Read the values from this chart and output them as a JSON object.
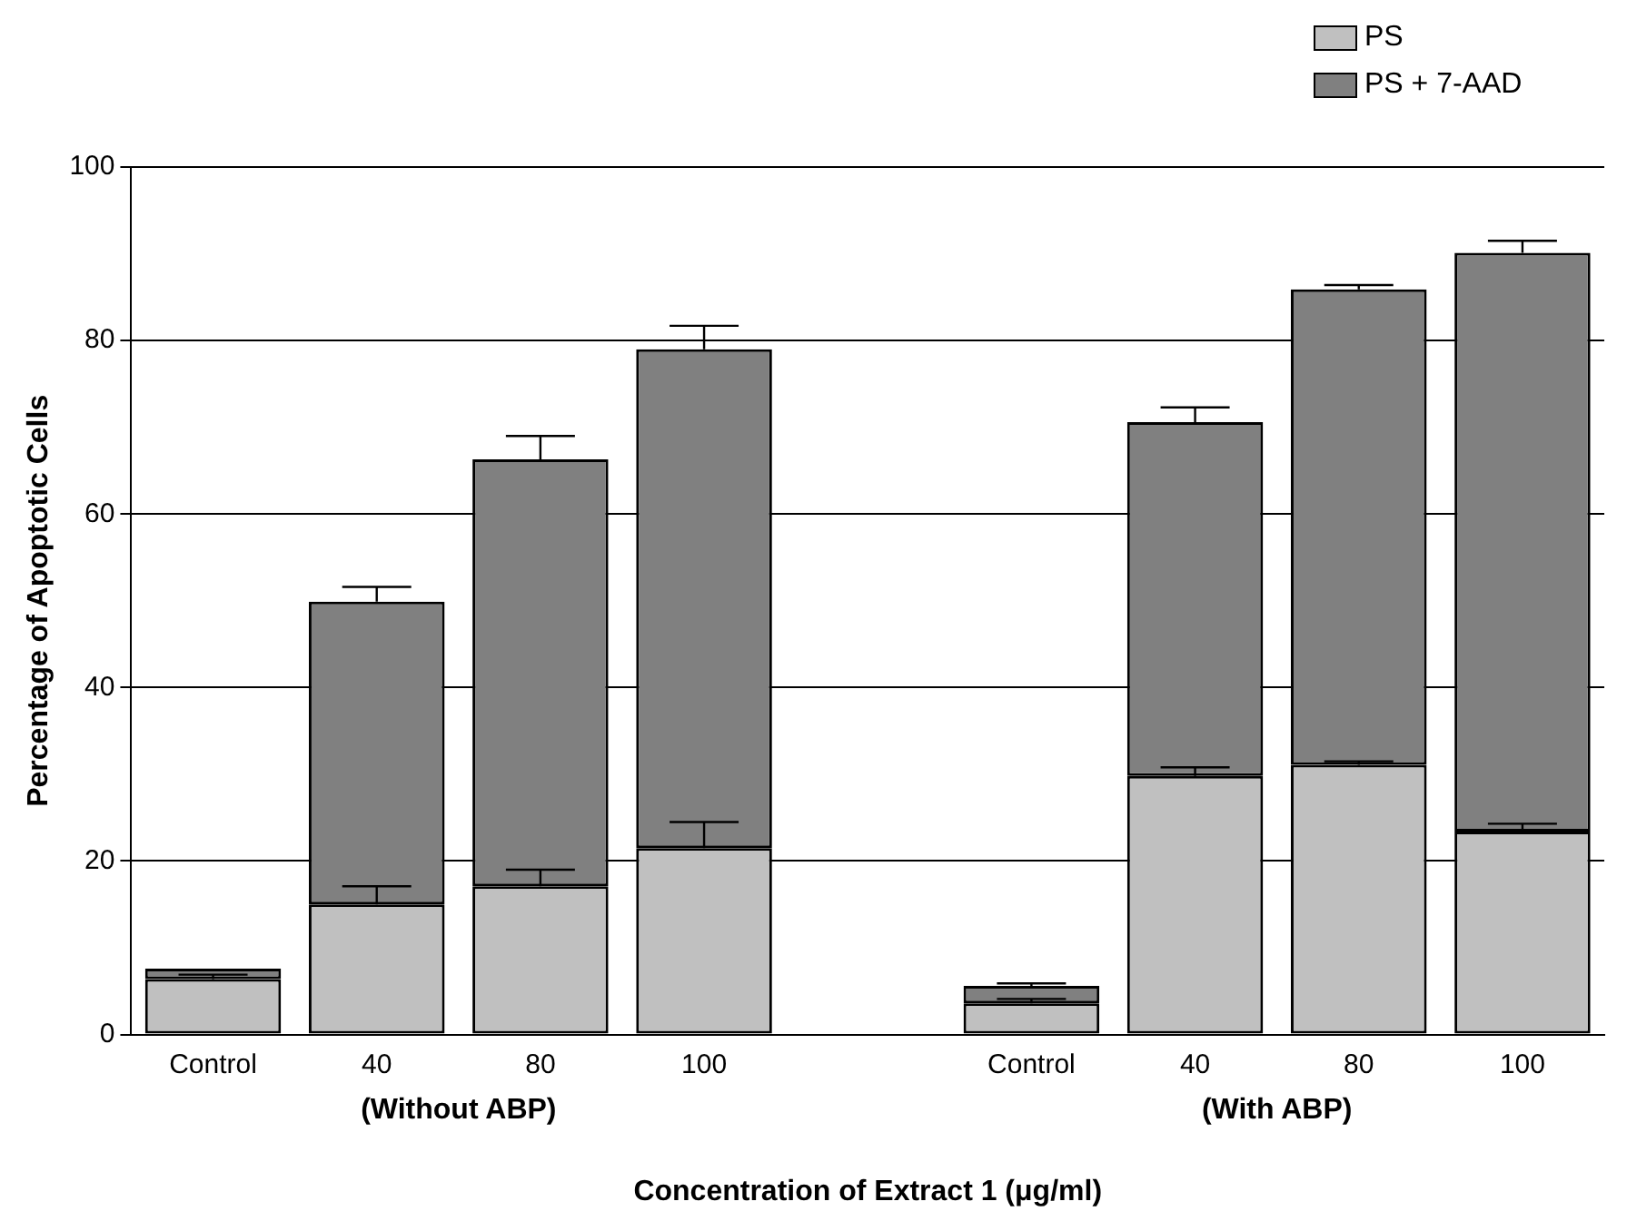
{
  "chart_data": {
    "type": "bar",
    "stacked": true,
    "xlabel": "Concentration of Extract 1 (μg/ml)",
    "ylabel": "Percentage of Apoptotic Cells",
    "categories": [
      "Control",
      "40",
      "80",
      "100",
      null,
      "Control",
      "40",
      "80",
      "100"
    ],
    "series": [
      {
        "name": "PS",
        "color": "#c0c0c0",
        "values": [
          6.4,
          15.0,
          17.1,
          21.5,
          null,
          3.6,
          29.8,
          31.1,
          23.4
        ],
        "errors": [
          [
            6.4,
            6.9
          ],
          [
            15.0,
            17.1
          ],
          [
            17.1,
            19.0
          ],
          [
            21.5,
            24.5
          ],
          null,
          [
            3.6,
            4.1
          ],
          [
            29.8,
            30.8
          ],
          [
            31.1,
            31.5
          ],
          [
            23.4,
            24.3
          ]
        ]
      },
      {
        "name": "PS + 7-AAD",
        "color": "#808080",
        "values": [
          1.2,
          34.9,
          49.2,
          57.5,
          null,
          2.0,
          40.8,
          54.8,
          66.7
        ],
        "errors": [
          null,
          [
            49.9,
            51.6
          ],
          [
            66.3,
            69.0
          ],
          [
            79.0,
            81.7
          ],
          null,
          [
            5.6,
            5.9
          ],
          [
            70.6,
            72.3
          ],
          [
            85.9,
            86.4
          ],
          [
            90.1,
            91.5
          ]
        ]
      }
    ],
    "ylim": [
      0,
      100
    ],
    "yticks": [
      0,
      20,
      40,
      60,
      80,
      100
    ],
    "grid": "y",
    "legend": "top right",
    "annotations": [
      "(Without ABP)",
      "(With ABP)"
    ]
  }
}
